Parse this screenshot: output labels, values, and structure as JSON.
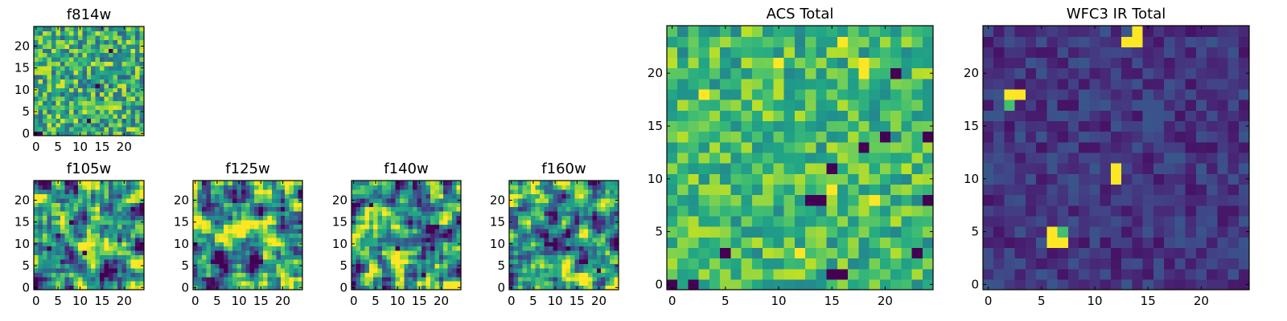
{
  "figure": {
    "description_colormap": "viridis",
    "colormap_stops": [
      "#440154",
      "#482475",
      "#414487",
      "#355f8d",
      "#2a788e",
      "#21918c",
      "#22a884",
      "#44bf70",
      "#7ad151",
      "#bddf26",
      "#fde725"
    ]
  },
  "chart_data": [
    {
      "type": "heatmap",
      "title": "f814w",
      "grid_size": 25,
      "xticks": [
        0,
        5,
        10,
        15,
        20
      ],
      "yticks": [
        0,
        5,
        10,
        15,
        20
      ],
      "xlim": [
        -0.5,
        24.5
      ],
      "ylim": [
        -0.5,
        24.5
      ],
      "texture": "fine pixel noise",
      "hot_pixels": [],
      "cold_pixels": [
        [
          0,
          0
        ],
        [
          1,
          0
        ],
        [
          12,
          3
        ],
        [
          14,
          11
        ],
        [
          17,
          19
        ]
      ]
    },
    {
      "type": "heatmap",
      "title": "f105w",
      "grid_size": 25,
      "xticks": [
        0,
        5,
        10,
        15,
        20
      ],
      "yticks": [
        0,
        5,
        10,
        15,
        20
      ],
      "xlim": [
        -0.5,
        24.5
      ],
      "ylim": [
        -0.5,
        24.5
      ],
      "texture": "smoothed noise",
      "hot_pixels": [],
      "cold_pixels": [
        [
          11,
          8
        ],
        [
          3,
          9
        ],
        [
          8,
          15
        ]
      ]
    },
    {
      "type": "heatmap",
      "title": "f125w",
      "grid_size": 25,
      "xticks": [
        0,
        5,
        10,
        15,
        20
      ],
      "yticks": [
        0,
        5,
        10,
        15,
        20
      ],
      "xlim": [
        -0.5,
        24.5
      ],
      "ylim": [
        -0.5,
        24.5
      ],
      "texture": "smoothed noise",
      "hot_pixels": [],
      "cold_pixels": [
        [
          0,
          10
        ],
        [
          15,
          6
        ]
      ]
    },
    {
      "type": "heatmap",
      "title": "f140w",
      "grid_size": 25,
      "xticks": [
        0,
        5,
        10,
        15,
        20
      ],
      "yticks": [
        0,
        5,
        10,
        15,
        20
      ],
      "xlim": [
        -0.5,
        24.5
      ],
      "ylim": [
        -0.5,
        24.5
      ],
      "texture": "smoothed noise",
      "hot_pixels": [],
      "cold_pixels": [
        [
          4,
          19
        ],
        [
          10,
          9
        ],
        [
          16,
          3
        ]
      ]
    },
    {
      "type": "heatmap",
      "title": "f160w",
      "grid_size": 25,
      "xticks": [
        0,
        5,
        10,
        15,
        20
      ],
      "yticks": [
        0,
        5,
        10,
        15,
        20
      ],
      "xlim": [
        -0.5,
        24.5
      ],
      "ylim": [
        -0.5,
        24.5
      ],
      "texture": "smoothed noise",
      "hot_pixels": [],
      "cold_pixels": [
        [
          13,
          9
        ],
        [
          20,
          4
        ]
      ]
    },
    {
      "type": "heatmap",
      "title": "ACS Total",
      "grid_size": 25,
      "xticks": [
        0,
        5,
        10,
        15,
        20
      ],
      "yticks": [
        0,
        5,
        10,
        15,
        20
      ],
      "xlim": [
        -0.5,
        24.5
      ],
      "ylim": [
        -0.5,
        24.5
      ],
      "texture": "coarse pixel noise",
      "hot_pixels": [
        [
          3,
          18
        ],
        [
          10,
          21
        ],
        [
          16,
          23
        ],
        [
          18,
          21
        ],
        [
          18,
          20
        ],
        [
          15,
          9
        ],
        [
          12,
          3
        ],
        [
          19,
          8
        ]
      ],
      "cold_pixels": [
        [
          0,
          0
        ],
        [
          2,
          0
        ],
        [
          13,
          8
        ],
        [
          14,
          8
        ],
        [
          15,
          1
        ],
        [
          16,
          1
        ],
        [
          21,
          20
        ],
        [
          20,
          14
        ],
        [
          24,
          14
        ],
        [
          15,
          11
        ],
        [
          18,
          13
        ],
        [
          23,
          3
        ],
        [
          24,
          8
        ],
        [
          5,
          3
        ]
      ]
    },
    {
      "type": "heatmap",
      "title": "WFC3 IR Total",
      "grid_size": 25,
      "xticks": [
        0,
        5,
        10,
        15,
        20
      ],
      "yticks": [
        0,
        5,
        10,
        15,
        20
      ],
      "xlim": [
        -0.5,
        24.5
      ],
      "ylim": [
        -0.5,
        24.5
      ],
      "texture": "dark background with compact sources",
      "hot_pixels": [
        [
          2,
          18
        ],
        [
          3,
          18
        ],
        [
          12,
          11
        ],
        [
          12,
          10
        ],
        [
          6,
          5
        ],
        [
          6,
          4
        ],
        [
          7,
          4
        ],
        [
          13,
          23
        ],
        [
          14,
          23
        ],
        [
          14,
          24
        ]
      ],
      "warm_pixels": [
        [
          2,
          17
        ],
        [
          7,
          5
        ]
      ],
      "cold_pixels": []
    }
  ]
}
